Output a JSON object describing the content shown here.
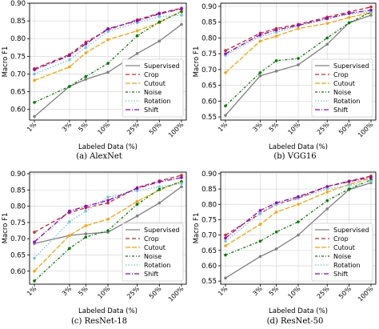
{
  "figure": {
    "panels": [
      {
        "caption": "(a) AlexNet"
      },
      {
        "caption": "(b) VGG16"
      },
      {
        "caption": "(c) ResNet-18"
      },
      {
        "caption": "(d) ResNet-50"
      }
    ]
  },
  "colors": {
    "Supervised": "#808080",
    "Crop": "#d62728",
    "Cutout": "#ffa500",
    "Noise": "#008000",
    "Rotation": "#66ccdd",
    "Shift": "#9400d3"
  },
  "chart_data": [
    {
      "type": "line",
      "xlabel": "Labeled Data (%)",
      "ylabel": "Macro F1",
      "categories": [
        "1%",
        "3%",
        "5%",
        "10%",
        "25%",
        "50%",
        "100%"
      ],
      "x": [
        1,
        3,
        5,
        10,
        25,
        50,
        100
      ],
      "ylim": [
        0.57,
        0.9
      ],
      "yticks": [
        "0.60",
        "0.65",
        "0.70",
        "0.75",
        "0.80",
        "0.85",
        "0.90"
      ],
      "grid": true,
      "legend": "bottom-right",
      "series": [
        {
          "name": "Supervised",
          "values": [
            0.58,
            0.665,
            0.685,
            0.705,
            0.758,
            0.793,
            0.84
          ]
        },
        {
          "name": "Crop",
          "values": [
            0.715,
            0.755,
            0.79,
            0.825,
            0.853,
            0.872,
            0.886
          ]
        },
        {
          "name": "Cutout",
          "values": [
            0.682,
            0.72,
            0.76,
            0.797,
            0.822,
            0.845,
            0.878
          ]
        },
        {
          "name": "Noise",
          "values": [
            0.62,
            0.665,
            0.693,
            0.73,
            0.808,
            0.847,
            0.876
          ]
        },
        {
          "name": "Rotation",
          "values": [
            0.7,
            0.74,
            0.775,
            0.82,
            0.845,
            0.862,
            0.866
          ]
        },
        {
          "name": "Shift",
          "values": [
            0.712,
            0.752,
            0.785,
            0.828,
            0.85,
            0.87,
            0.884
          ]
        }
      ]
    },
    {
      "type": "line",
      "xlabel": "Labeled Data (%)",
      "ylabel": "Macro F1",
      "categories": [
        "1%",
        "3%",
        "5%",
        "10%",
        "25%",
        "50%",
        "100%"
      ],
      "x": [
        1,
        3,
        5,
        10,
        25,
        50,
        100
      ],
      "ylim": [
        0.54,
        0.91
      ],
      "yticks": [
        "0.55",
        "0.60",
        "0.65",
        "0.70",
        "0.75",
        "0.80",
        "0.85",
        "0.90"
      ],
      "grid": true,
      "legend": "bottom-right",
      "series": [
        {
          "name": "Supervised",
          "values": [
            0.555,
            0.68,
            0.695,
            0.715,
            0.78,
            0.848,
            0.872
          ]
        },
        {
          "name": "Crop",
          "values": [
            0.76,
            0.815,
            0.83,
            0.843,
            0.866,
            0.882,
            0.898
          ]
        },
        {
          "name": "Cutout",
          "values": [
            0.69,
            0.79,
            0.806,
            0.83,
            0.846,
            0.865,
            0.88
          ]
        },
        {
          "name": "Noise",
          "values": [
            0.585,
            0.69,
            0.728,
            0.735,
            0.8,
            0.848,
            0.882
          ]
        },
        {
          "name": "Rotation",
          "values": [
            0.745,
            0.805,
            0.818,
            0.838,
            0.86,
            0.876,
            0.882
          ]
        },
        {
          "name": "Shift",
          "values": [
            0.75,
            0.81,
            0.825,
            0.84,
            0.862,
            0.878,
            0.888
          ]
        }
      ]
    },
    {
      "type": "line",
      "xlabel": "Labeled Data (%)",
      "ylabel": "Macro F1",
      "categories": [
        "1%",
        "3%",
        "5%",
        "10%",
        "25%",
        "50%",
        "100%"
      ],
      "x": [
        1,
        3,
        5,
        10,
        25,
        50,
        100
      ],
      "ylim": [
        0.56,
        0.905
      ],
      "yticks": [
        "0.60",
        "0.65",
        "0.70",
        "0.75",
        "0.80",
        "0.85",
        "0.90"
      ],
      "grid": true,
      "legend": "bottom-right",
      "series": [
        {
          "name": "Supervised",
          "values": [
            0.685,
            0.71,
            0.715,
            0.72,
            0.77,
            0.81,
            0.86
          ]
        },
        {
          "name": "Crop",
          "values": [
            0.72,
            0.78,
            0.795,
            0.81,
            0.857,
            0.878,
            0.895
          ]
        },
        {
          "name": "Cutout",
          "values": [
            0.6,
            0.71,
            0.74,
            0.76,
            0.815,
            0.85,
            0.876
          ]
        },
        {
          "name": "Noise",
          "values": [
            0.57,
            0.67,
            0.705,
            0.725,
            0.806,
            0.852,
            0.876
          ]
        },
        {
          "name": "Rotation",
          "values": [
            0.64,
            0.752,
            0.785,
            0.828,
            0.848,
            0.86,
            0.87
          ]
        },
        {
          "name": "Shift",
          "values": [
            0.69,
            0.785,
            0.8,
            0.818,
            0.855,
            0.875,
            0.888
          ]
        }
      ]
    },
    {
      "type": "line",
      "xlabel": "Labeled Data (%)",
      "ylabel": "Macro F1",
      "categories": [
        "1%",
        "3%",
        "5%",
        "10%",
        "25%",
        "50%",
        "100%"
      ],
      "x": [
        1,
        3,
        5,
        10,
        25,
        50,
        100
      ],
      "ylim": [
        0.54,
        0.905
      ],
      "yticks": [
        "0.55",
        "0.60",
        "0.65",
        "0.70",
        "0.75",
        "0.80",
        "0.85",
        "0.90"
      ],
      "grid": true,
      "legend": "bottom-right",
      "series": [
        {
          "name": "Supervised",
          "values": [
            0.56,
            0.63,
            0.655,
            0.7,
            0.785,
            0.848,
            0.87
          ]
        },
        {
          "name": "Crop",
          "values": [
            0.7,
            0.77,
            0.8,
            0.82,
            0.858,
            0.876,
            0.892
          ]
        },
        {
          "name": "Cutout",
          "values": [
            0.665,
            0.735,
            0.775,
            0.8,
            0.84,
            0.865,
            0.885
          ]
        },
        {
          "name": "Noise",
          "values": [
            0.635,
            0.68,
            0.71,
            0.743,
            0.812,
            0.85,
            0.88
          ]
        },
        {
          "name": "Rotation",
          "values": [
            0.68,
            0.77,
            0.8,
            0.82,
            0.85,
            0.862,
            0.875
          ]
        },
        {
          "name": "Shift",
          "values": [
            0.69,
            0.78,
            0.805,
            0.825,
            0.858,
            0.874,
            0.888
          ]
        }
      ]
    }
  ]
}
